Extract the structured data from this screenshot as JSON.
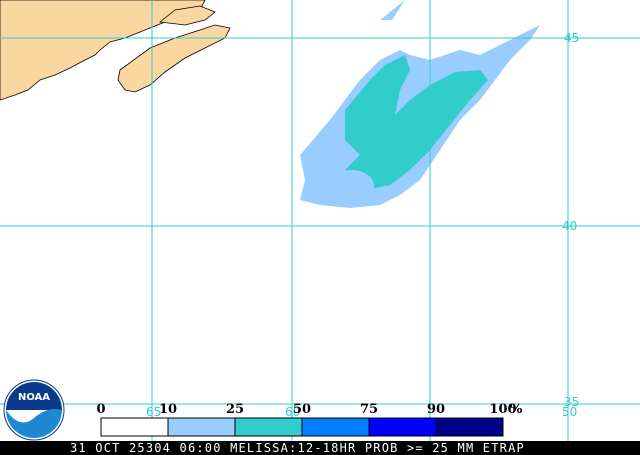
{
  "map": {
    "lat_labels": [
      "45",
      "40",
      "35"
    ],
    "lon_labels": [
      "65",
      "60",
      "50"
    ],
    "legend": {
      "labels": [
        "0",
        "10",
        "25",
        "50",
        "75",
        "90",
        "100"
      ],
      "unit": "%",
      "colors": [
        "#ffffff",
        "#99ccff",
        "#33cccc",
        "#0080ff",
        "#0000ff",
        "#00008b"
      ]
    },
    "logo": "NOAA",
    "caption": "31 OCT 25304 06:00 MELISSA:12-18HR PROB >= 25 MM ETRAP"
  }
}
